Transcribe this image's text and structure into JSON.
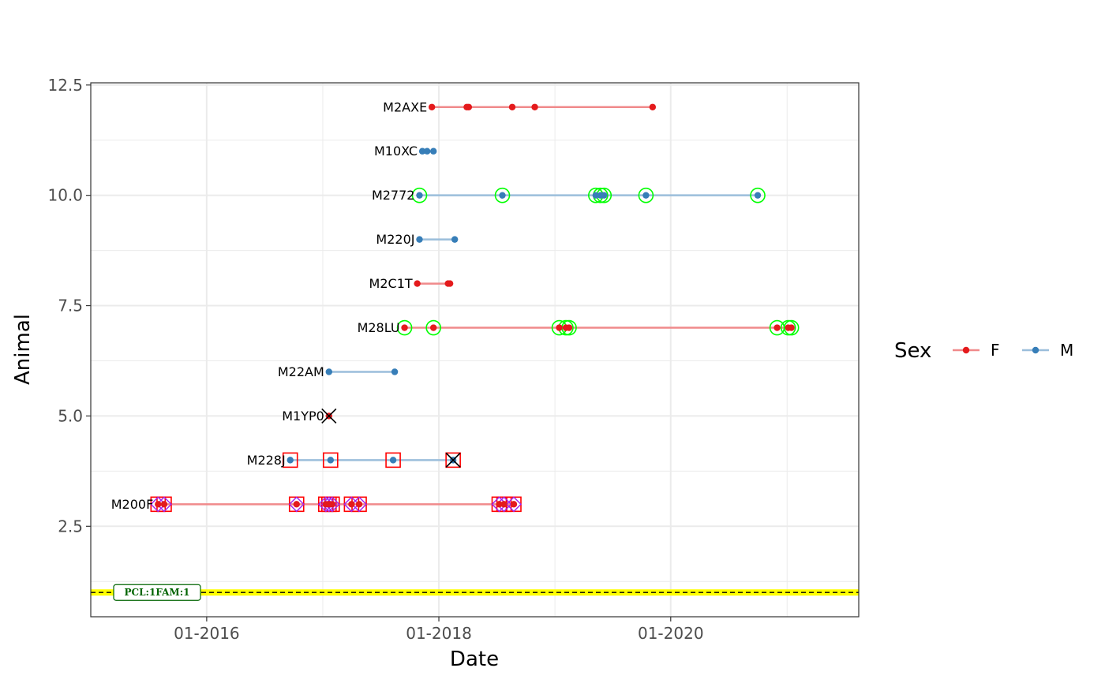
{
  "chart_data": {
    "type": "scatter",
    "title": "",
    "xlabel": "Date",
    "ylabel": "Animal",
    "xlim": [
      "2015-01-01",
      "2021-08-15"
    ],
    "ylim": [
      0.45,
      12.55
    ],
    "x_ticks": [
      {
        "date": "2016-01-01",
        "label": "01-2016"
      },
      {
        "date": "2018-01-01",
        "label": "01-2018"
      },
      {
        "date": "2020-01-01",
        "label": "01-2020"
      }
    ],
    "y_ticks": [
      {
        "value": 2.5,
        "label": "2.5"
      },
      {
        "value": 5.0,
        "label": "5.0"
      },
      {
        "value": 7.5,
        "label": "7.5"
      },
      {
        "value": 10.0,
        "label": "10.0"
      },
      {
        "value": 12.5,
        "label": "12.5"
      }
    ],
    "grid": true,
    "legend": {
      "title": "Sex",
      "placement": "right",
      "items": [
        {
          "label": "F",
          "color": "#E41A1C",
          "line_color": "#F08A8B"
        },
        {
          "label": "M",
          "color": "#377EB8",
          "line_color": "#9BBEDB"
        }
      ]
    },
    "reference_line": {
      "y": 1,
      "label": "PCL:1FAM:1",
      "band_color": "#FFFF00",
      "line_color": "#000000",
      "label_color": "#006400"
    },
    "series": [
      {
        "name": "M2AXE",
        "y": 12,
        "sex": "F",
        "dates": [
          "2017-12-10",
          "2018-03-30",
          "2018-04-05",
          "2018-08-20",
          "2018-10-30",
          "2019-11-05"
        ],
        "green_circle": [],
        "red_square": [],
        "purple_diamond": [],
        "black_x": []
      },
      {
        "name": "M10XC",
        "y": 11,
        "sex": "M",
        "dates": [
          "2017-11-10",
          "2017-11-25",
          "2017-12-15"
        ],
        "green_circle": [],
        "red_square": [],
        "purple_diamond": [],
        "black_x": []
      },
      {
        "name": "M2772",
        "y": 10,
        "sex": "M",
        "dates": [
          "2017-11-01",
          "2018-07-20",
          "2019-05-10",
          "2019-05-25",
          "2019-06-05",
          "2019-10-15",
          "2020-10-01"
        ],
        "green_circle": [
          "2017-11-01",
          "2018-07-20",
          "2019-05-10",
          "2019-05-25",
          "2019-06-05",
          "2019-10-15",
          "2020-10-01"
        ],
        "red_square": [],
        "purple_diamond": [],
        "black_x": []
      },
      {
        "name": "M220J",
        "y": 9,
        "sex": "M",
        "dates": [
          "2017-11-01",
          "2018-02-20"
        ],
        "green_circle": [],
        "red_square": [],
        "purple_diamond": [],
        "black_x": []
      },
      {
        "name": "M2C1T",
        "y": 8,
        "sex": "F",
        "dates": [
          "2017-10-25",
          "2018-01-30",
          "2018-02-05"
        ],
        "green_circle": [],
        "red_square": [],
        "purple_diamond": [],
        "black_x": []
      },
      {
        "name": "M28LU",
        "y": 7,
        "sex": "F",
        "dates": [
          "2017-09-15",
          "2017-12-15",
          "2019-01-15",
          "2019-02-05",
          "2019-02-15",
          "2020-12-01",
          "2021-01-05",
          "2021-01-15"
        ],
        "green_circle": [
          "2017-09-15",
          "2017-12-15",
          "2019-01-15",
          "2019-02-05",
          "2019-02-15",
          "2020-12-01",
          "2021-01-05",
          "2021-01-15"
        ],
        "red_square": [],
        "purple_diamond": [],
        "black_x": []
      },
      {
        "name": "M22AM",
        "y": 6,
        "sex": "M",
        "dates": [
          "2017-01-20",
          "2017-08-15"
        ],
        "green_circle": [],
        "red_square": [],
        "purple_diamond": [],
        "black_x": []
      },
      {
        "name": "M1YP0",
        "y": 5,
        "sex": "F",
        "dates": [
          "2017-01-20"
        ],
        "green_circle": [],
        "red_square": [],
        "purple_diamond": [],
        "black_x": [
          "2017-01-20"
        ]
      },
      {
        "name": "M228J",
        "y": 4,
        "sex": "M",
        "dates": [
          "2016-09-20",
          "2017-01-25",
          "2017-08-10",
          "2018-02-15"
        ],
        "green_circle": [],
        "red_square": [
          "2016-09-20",
          "2017-01-25",
          "2017-08-10",
          "2018-02-15"
        ],
        "purple_diamond": [],
        "black_x": [
          "2018-02-15"
        ]
      },
      {
        "name": "M200F",
        "y": 3,
        "sex": "F",
        "dates": [
          "2015-08-01",
          "2015-08-20",
          "2016-10-10",
          "2017-01-10",
          "2017-01-20",
          "2017-01-30",
          "2017-04-01",
          "2017-04-25",
          "2018-07-10",
          "2018-07-25",
          "2018-08-25"
        ],
        "green_circle": [],
        "red_square": [
          "2015-08-01",
          "2015-08-20",
          "2016-10-10",
          "2017-01-10",
          "2017-01-20",
          "2017-01-30",
          "2017-04-01",
          "2017-04-25",
          "2018-07-10",
          "2018-07-25",
          "2018-08-25"
        ],
        "purple_diamond": [
          "2015-08-01",
          "2015-08-20",
          "2016-10-10",
          "2017-01-10",
          "2017-01-20",
          "2017-01-30",
          "2017-04-01",
          "2017-04-25",
          "2018-07-10",
          "2018-07-25",
          "2018-08-25"
        ],
        "black_x": []
      }
    ]
  }
}
